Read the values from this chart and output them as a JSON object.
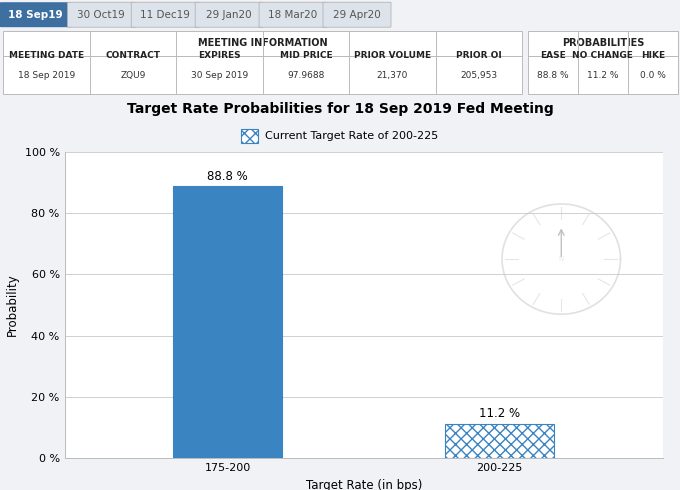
{
  "tabs": [
    "18 Sep19",
    "30 Oct19",
    "11 Dec19",
    "29 Jan20",
    "18 Mar20",
    "29 Apr20"
  ],
  "active_tab": 0,
  "tab_bg_active": "#3d6fa0",
  "tab_bg_inactive": "#dde3ea",
  "tab_text_active": "#ffffff",
  "tab_text_inactive": "#555555",
  "tab_border_color": "#aaaaaa",
  "table_border_color": "#bbbbbb",
  "table_bg": "#ffffff",
  "table_header_text_color": "#222222",
  "table_data_text_color": "#333333",
  "meeting_info_headers": [
    "MEETING DATE",
    "CONTRACT",
    "EXPIRES",
    "MID PRICE",
    "PRIOR VOLUME",
    "PRIOR OI"
  ],
  "meeting_info_values": [
    "18 Sep 2019",
    "ZQU9",
    "30 Sep 2019",
    "97.9688",
    "21,370",
    "205,953"
  ],
  "prob_headers": [
    "EASE",
    "NO CHANGE",
    "HIKE"
  ],
  "prob_values": [
    "88.8 %",
    "11.2 %",
    "0.0 %"
  ],
  "chart_title": "Target Rate Probabilities for 18 Sep 2019 Fed Meeting",
  "legend_label": "Current Target Rate of 200-225",
  "bar_categories": [
    "175-200",
    "200-225"
  ],
  "bar_values": [
    88.8,
    11.2
  ],
  "bar_solid_color": "#3a84c1",
  "bar_hatch_facecolor": "#ffffff",
  "bar_hatch_edgecolor": "#3a84c1",
  "bar_hatch_pattern": "xxx",
  "bar_width": 0.4,
  "xlabel": "Target Rate (in bps)",
  "ylabel": "Probability",
  "ylim": [
    0,
    100
  ],
  "yticks": [
    0,
    20,
    40,
    60,
    80,
    100
  ],
  "ytick_labels": [
    "0 %",
    "20 %",
    "40 %",
    "60 %",
    "80 %",
    "100 %"
  ],
  "chart_bg": "#ffffff",
  "grid_color": "#d0d0d0",
  "title_fontsize": 10,
  "axis_label_fontsize": 8.5,
  "tick_fontsize": 8,
  "annotation_fontsize": 8.5,
  "table_fontsize": 7,
  "tab_fontsize": 7.5,
  "fig_bg": "#f0f2f5",
  "panel_bg": "#f0f2f5"
}
